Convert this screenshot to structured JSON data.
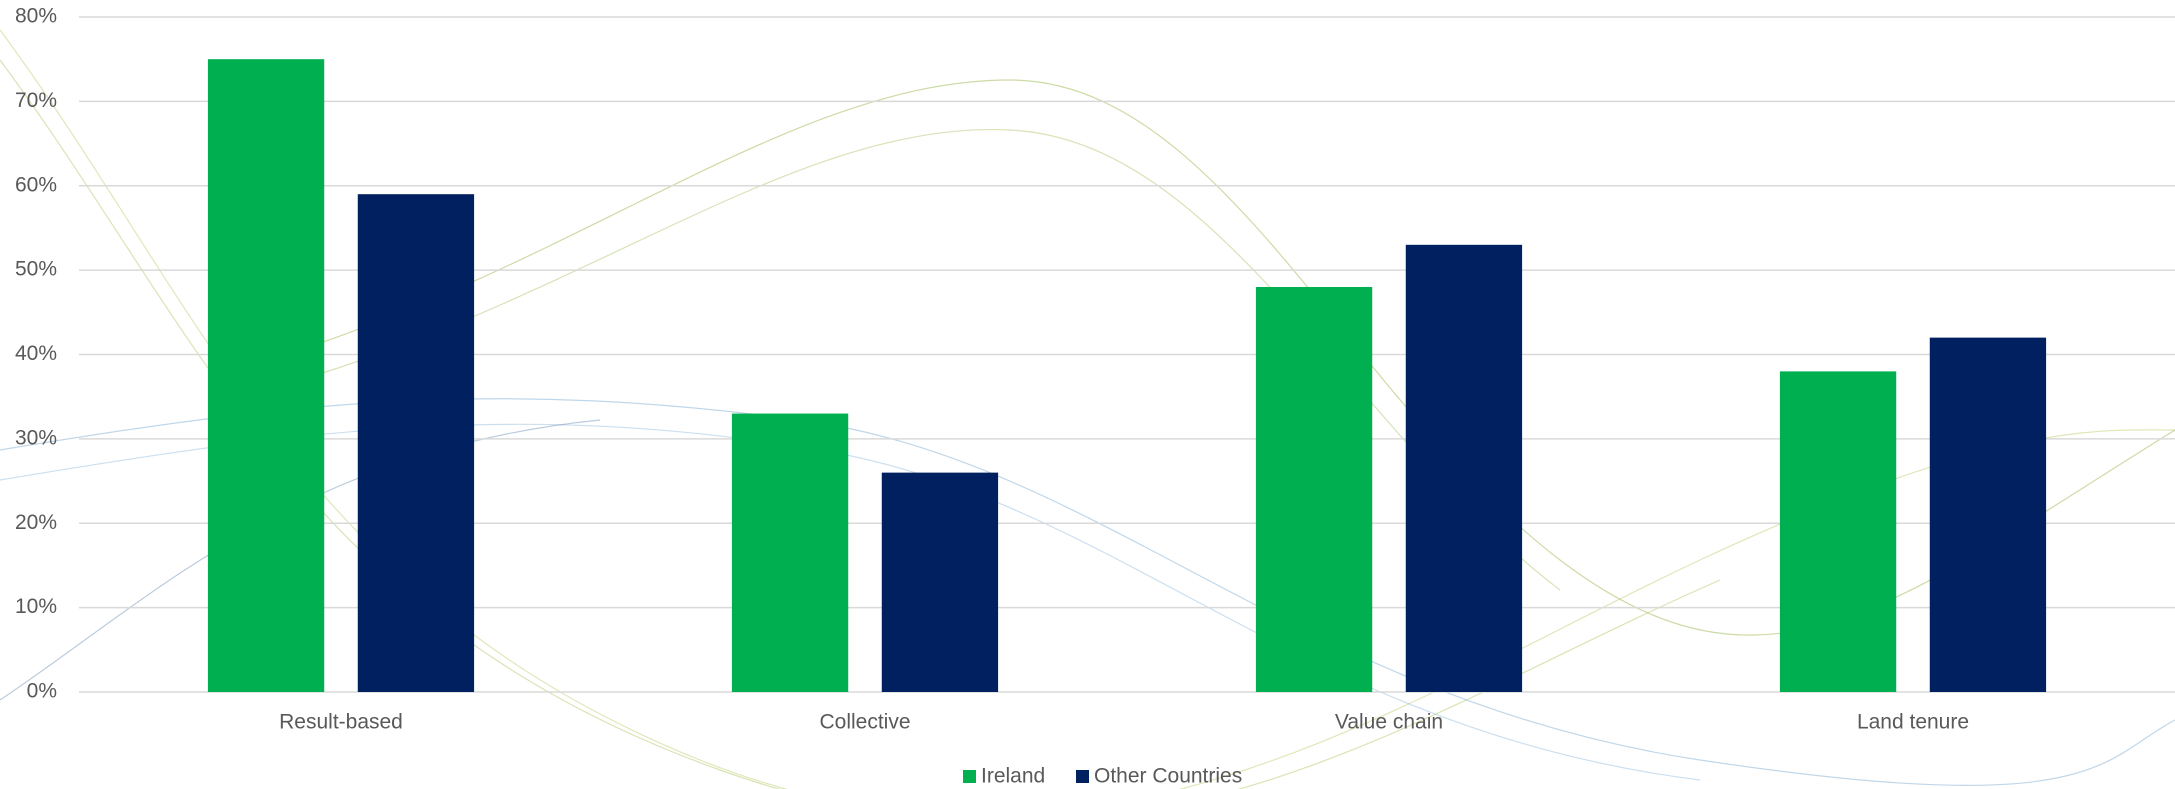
{
  "chart_data": {
    "type": "bar",
    "categories": [
      "Result-based",
      "Collective",
      "Value chain",
      "Land tenure"
    ],
    "series": [
      {
        "name": "Ireland",
        "color": "#00b050",
        "values": [
          75,
          33,
          48,
          38
        ]
      },
      {
        "name": "Other Countries",
        "color": "#002060",
        "values": [
          59,
          26,
          53,
          42
        ]
      }
    ],
    "ylim": [
      0,
      80
    ],
    "yticks": [
      {
        "value": 0,
        "label": "0%"
      },
      {
        "value": 10,
        "label": "10%"
      },
      {
        "value": 20,
        "label": "20%"
      },
      {
        "value": 30,
        "label": "30%"
      },
      {
        "value": 40,
        "label": "40%"
      },
      {
        "value": 50,
        "label": "50%"
      },
      {
        "value": 60,
        "label": "60%"
      },
      {
        "value": 70,
        "label": "70%"
      },
      {
        "value": 80,
        "label": "80%"
      }
    ],
    "grid": true,
    "legend": "bottom"
  }
}
